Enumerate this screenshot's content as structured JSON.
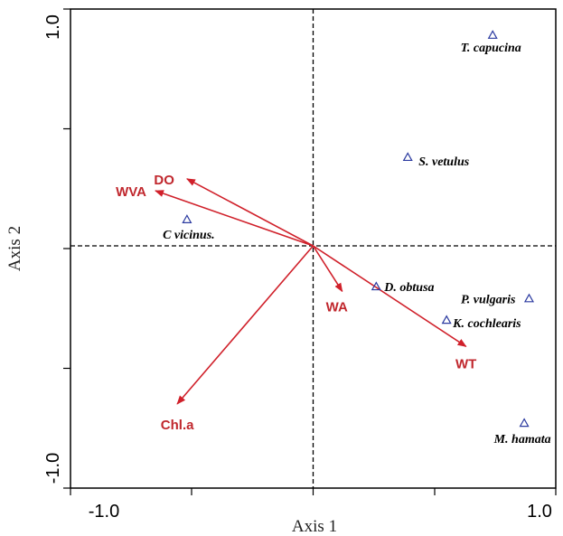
{
  "chart_data": {
    "type": "scatter",
    "title": "",
    "xlabel": "Axis 1",
    "ylabel": "Axis 2",
    "xlim": [
      -1.0,
      1.0
    ],
    "ylim": [
      -1.0,
      1.0
    ],
    "tick_labels": {
      "x_min": "-1.0",
      "x_max": "1.0",
      "y_min": "-1.0",
      "y_max": "1.0"
    },
    "grid": false,
    "zero_lines": "dashed",
    "colors": {
      "arrows": "#d0202a",
      "species_marker": "#2b3aa0",
      "axes": "#000000"
    },
    "species": [
      {
        "name": "T. capucina",
        "x": 0.74,
        "y": 0.88
      },
      {
        "name": "S. vetulus",
        "x": 0.39,
        "y": 0.37
      },
      {
        "name": "C vicinus.",
        "x": -0.52,
        "y": 0.11
      },
      {
        "name": "D. obtusa",
        "x": 0.26,
        "y": -0.17
      },
      {
        "name": "P. vulgaris",
        "x": 0.89,
        "y": -0.22
      },
      {
        "name": "K. cochlearis",
        "x": 0.55,
        "y": -0.31
      },
      {
        "name": "M. hamata",
        "x": 0.87,
        "y": -0.74
      }
    ],
    "environment": [
      {
        "name": "DO",
        "x": -0.52,
        "y": 0.28
      },
      {
        "name": "WVA",
        "x": -0.65,
        "y": 0.23
      },
      {
        "name": "WA",
        "x": 0.12,
        "y": -0.19
      },
      {
        "name": "WT",
        "x": 0.63,
        "y": -0.42
      },
      {
        "name": "Chl.a",
        "x": -0.56,
        "y": -0.66
      }
    ]
  }
}
